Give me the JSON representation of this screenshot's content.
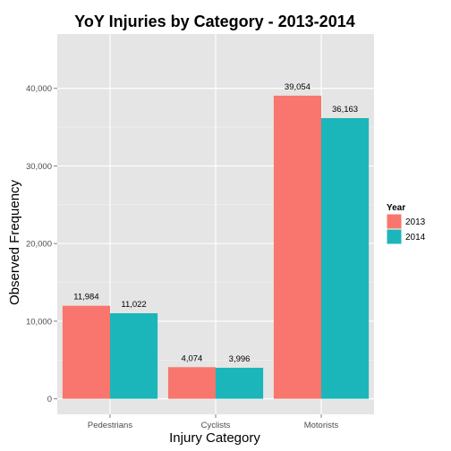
{
  "chart_data": {
    "type": "bar",
    "title": "YoY Injuries by Category - 2013-2014",
    "xlabel": "Injury Category",
    "ylabel": "Observed Frequency",
    "categories": [
      "Pedestrians",
      "Cyclists",
      "Motorists"
    ],
    "series": [
      {
        "name": "2013",
        "color": "#f8766d",
        "values": [
          11984,
          4074,
          39054
        ]
      },
      {
        "name": "2014",
        "color": "#1bb6b9",
        "values": [
          11022,
          3996,
          36163
        ]
      }
    ],
    "data_labels": [
      [
        "11,984",
        "4,074",
        "39,054"
      ],
      [
        "11,022",
        "3,996",
        "36,163"
      ]
    ],
    "y_ticks": [
      0,
      10000,
      20000,
      30000,
      40000
    ],
    "y_tick_labels": [
      "0",
      "10,000",
      "20,000",
      "30,000",
      "40,000"
    ],
    "ylim": [
      -2000,
      47000
    ],
    "grid": true,
    "panel_color": "#e5e5e5",
    "legend": {
      "title": "Year",
      "position": "right"
    }
  }
}
